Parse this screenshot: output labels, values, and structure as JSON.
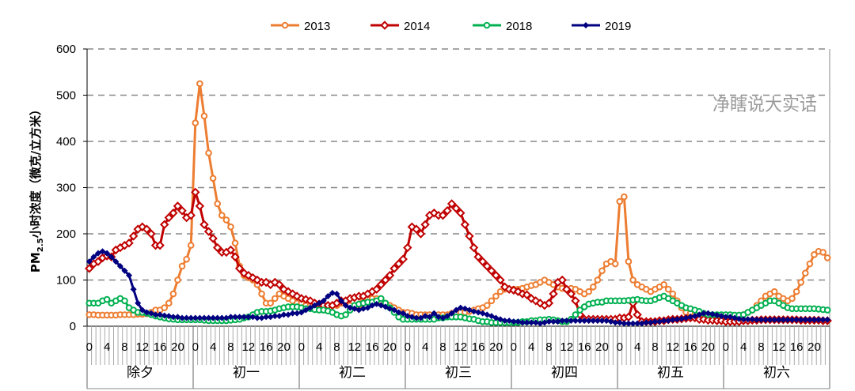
{
  "chart_data": {
    "type": "line",
    "title": "",
    "ylabel": "PM2.5小时浓度（微克/立方米）",
    "ylabel_parts": {
      "pre": "PM",
      "sub": "2.5",
      "post": "小时浓度（微克/立方米）"
    },
    "ylim": [
      0,
      600
    ],
    "yticks": [
      0,
      100,
      200,
      300,
      400,
      500,
      600
    ],
    "grid": "dashed horizontal",
    "legend_position": "top-center",
    "days": [
      "除夕",
      "初一",
      "初二",
      "初三",
      "初四",
      "初五",
      "初六"
    ],
    "hour_tick_labels": [
      "0",
      "4",
      "8",
      "12",
      "16",
      "20"
    ],
    "hour_tick_hours": [
      0,
      4,
      8,
      12,
      16,
      20
    ],
    "hours_per_day": 24,
    "series": [
      {
        "name": "2013",
        "color": "#ED7D31",
        "marker": "circle-open",
        "values": [
          25,
          25,
          24,
          24,
          24,
          24,
          24,
          25,
          25,
          25,
          25,
          26,
          26,
          27,
          30,
          35,
          35,
          40,
          50,
          70,
          100,
          130,
          145,
          175,
          440,
          525,
          455,
          375,
          320,
          265,
          240,
          230,
          215,
          180,
          130,
          110,
          105,
          100,
          90,
          70,
          50,
          50,
          60,
          70,
          65,
          60,
          55,
          50,
          50,
          45,
          45,
          45,
          45,
          45,
          45,
          45,
          45,
          50,
          55,
          45,
          40,
          45,
          55,
          60,
          60,
          60,
          55,
          50,
          45,
          40,
          35,
          30,
          30,
          28,
          25,
          25,
          25,
          25,
          25,
          25,
          25,
          25,
          28,
          30,
          30,
          30,
          32,
          35,
          38,
          40,
          45,
          55,
          65,
          75,
          80,
          80,
          80,
          80,
          82,
          85,
          88,
          90,
          95,
          100,
          95,
          90,
          85,
          82,
          80,
          82,
          80,
          75,
          70,
          75,
          85,
          100,
          120,
          135,
          140,
          135,
          270,
          280,
          140,
          100,
          90,
          85,
          80,
          75,
          80,
          85,
          90,
          80,
          70,
          55,
          40,
          30,
          28,
          25,
          22,
          20,
          20,
          20,
          20,
          20,
          20,
          20,
          20,
          22,
          25,
          30,
          35,
          45,
          55,
          65,
          70,
          75,
          65,
          60,
          55,
          60,
          75,
          95,
          115,
          135,
          155,
          162,
          160,
          148
        ]
      },
      {
        "name": "2014",
        "color": "#C00000",
        "marker": "diamond-open",
        "values": [
          125,
          135,
          140,
          148,
          152,
          150,
          165,
          170,
          175,
          180,
          195,
          210,
          215,
          210,
          200,
          175,
          175,
          220,
          235,
          245,
          260,
          250,
          235,
          240,
          290,
          260,
          220,
          205,
          190,
          170,
          160,
          160,
          165,
          150,
          125,
          115,
          110,
          105,
          100,
          95,
          95,
          90,
          95,
          90,
          80,
          75,
          70,
          65,
          60,
          58,
          55,
          50,
          48,
          45,
          45,
          45,
          50,
          55,
          55,
          60,
          62,
          65,
          65,
          70,
          75,
          80,
          90,
          100,
          110,
          125,
          135,
          145,
          170,
          215,
          210,
          200,
          220,
          240,
          245,
          240,
          240,
          250,
          265,
          255,
          245,
          220,
          195,
          170,
          150,
          140,
          130,
          120,
          110,
          100,
          85,
          80,
          78,
          75,
          70,
          68,
          60,
          55,
          50,
          45,
          50,
          70,
          95,
          100,
          80,
          70,
          55,
          25,
          15,
          15,
          15,
          15,
          15,
          15,
          15,
          15,
          18,
          18,
          20,
          50,
          25,
          10,
          10,
          10,
          10,
          12,
          12,
          14,
          15,
          15,
          16,
          17,
          18,
          18,
          15,
          15,
          13,
          13,
          12,
          12,
          10,
          10,
          10,
          10,
          12,
          12,
          13,
          13,
          14,
          14,
          14,
          14,
          14,
          14,
          14,
          14,
          14,
          13,
          13,
          13,
          13,
          13,
          12,
          12
        ]
      },
      {
        "name": "2018",
        "color": "#00B050",
        "marker": "circle-open",
        "values": [
          50,
          50,
          50,
          55,
          58,
          50,
          55,
          60,
          55,
          40,
          35,
          30,
          30,
          28,
          25,
          22,
          20,
          18,
          16,
          15,
          14,
          14,
          14,
          14,
          14,
          14,
          13,
          12,
          12,
          12,
          12,
          12,
          13,
          14,
          15,
          18,
          20,
          25,
          30,
          32,
          32,
          33,
          35,
          38,
          40,
          42,
          42,
          42,
          40,
          38,
          38,
          36,
          35,
          35,
          33,
          30,
          25,
          22,
          25,
          35,
          45,
          48,
          50,
          52,
          52,
          55,
          60,
          50,
          40,
          30,
          20,
          15,
          15,
          15,
          15,
          15,
          15,
          15,
          15,
          18,
          18,
          20,
          20,
          20,
          20,
          18,
          16,
          15,
          12,
          10,
          10,
          8,
          8,
          8,
          8,
          8,
          8,
          8,
          10,
          10,
          12,
          12,
          14,
          14,
          15,
          14,
          12,
          10,
          10,
          15,
          25,
          35,
          42,
          48,
          50,
          52,
          52,
          55,
          55,
          55,
          55,
          55,
          56,
          57,
          58,
          56,
          55,
          55,
          58,
          62,
          65,
          60,
          55,
          50,
          45,
          40,
          38,
          35,
          32,
          28,
          25,
          25,
          25,
          25,
          25,
          25,
          24,
          24,
          25,
          30,
          35,
          40,
          45,
          50,
          55,
          55,
          50,
          45,
          40,
          38,
          38,
          38,
          38,
          38,
          38,
          37,
          36,
          35
        ]
      },
      {
        "name": "2019",
        "color": "#000080",
        "marker": "diamond-filled",
        "values": [
          140,
          150,
          158,
          162,
          158,
          150,
          140,
          130,
          120,
          110,
          80,
          50,
          35,
          30,
          28,
          25,
          25,
          23,
          22,
          20,
          20,
          18,
          18,
          18,
          18,
          18,
          18,
          18,
          18,
          18,
          18,
          18,
          20,
          20,
          20,
          20,
          20,
          20,
          18,
          18,
          20,
          20,
          22,
          22,
          25,
          25,
          28,
          28,
          30,
          35,
          40,
          45,
          50,
          55,
          65,
          72,
          70,
          55,
          45,
          40,
          38,
          35,
          38,
          40,
          45,
          48,
          45,
          42,
          38,
          35,
          30,
          28,
          22,
          20,
          18,
          18,
          22,
          20,
          28,
          20,
          18,
          22,
          28,
          35,
          40,
          38,
          35,
          32,
          30,
          28,
          25,
          22,
          18,
          15,
          12,
          12,
          10,
          10,
          8,
          8,
          8,
          8,
          6,
          8,
          10,
          10,
          10,
          12,
          12,
          12,
          12,
          12,
          12,
          12,
          12,
          12,
          12,
          12,
          10,
          8,
          8,
          6,
          6,
          6,
          6,
          6,
          8,
          8,
          10,
          10,
          12,
          12,
          14,
          15,
          16,
          18,
          20,
          22,
          25,
          28,
          28,
          26,
          24,
          22,
          20,
          20,
          18,
          16,
          15,
          15,
          15,
          14,
          14,
          14,
          14,
          14,
          14,
          14,
          14,
          14,
          14,
          14,
          14,
          14,
          14,
          14,
          14,
          14
        ]
      }
    ]
  },
  "watermark": "净瞎说大实话"
}
